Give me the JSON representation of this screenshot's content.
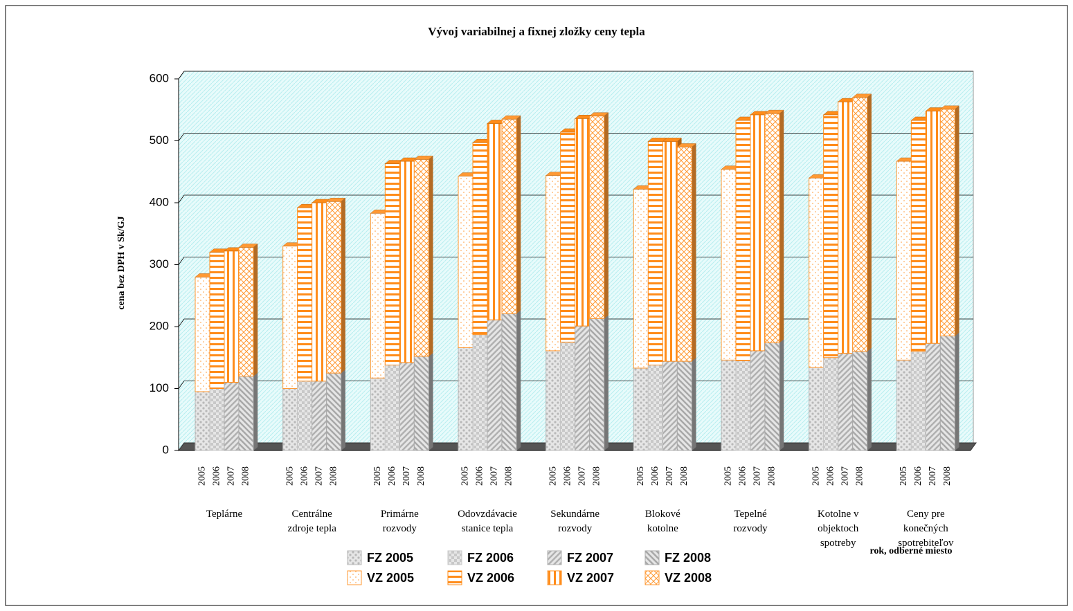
{
  "chart_data": {
    "type": "stacked-bar-3d",
    "title": "Vývoj variabilnej a fixnej zložky ceny tepla",
    "y_label": "cena bez DPH v Sk/GJ",
    "x_label": "rok, odberné miesto",
    "categories": [
      "Teplárne",
      "Centrálne\nzdroje tepla",
      "Primárne\nrozvody",
      "Odovzdávacie\nstanice tepla",
      "Sekundárne\nrozvody",
      "Blokové\nkotolne",
      "Tepelné\nrozvody",
      "Kotolne v\nobjektoch\nspotreby",
      "Ceny pre\nkonečných\nspotrebiteľov"
    ],
    "years": [
      "2005",
      "2006",
      "2007",
      "2008"
    ],
    "ylim": [
      0,
      600
    ],
    "yticks": [
      0,
      100,
      200,
      300,
      400,
      500,
      600
    ],
    "grid": true,
    "series": [
      {
        "name": "FZ 2005",
        "color": "#b8b8b8",
        "values": [
          95,
          100,
          117,
          166,
          161,
          133,
          146,
          134,
          146
        ]
      },
      {
        "name": "FZ 2006",
        "color": "#c8c8c8",
        "values": [
          100,
          112,
          138,
          187,
          175,
          138,
          145,
          150,
          160
        ]
      },
      {
        "name": "FZ 2007",
        "color": "#b0b0b0",
        "values": [
          110,
          112,
          142,
          211,
          201,
          144,
          161,
          157,
          173
        ]
      },
      {
        "name": "FZ 2008",
        "color": "#a8a8a8",
        "values": [
          120,
          125,
          152,
          221,
          213,
          144,
          174,
          160,
          185
        ]
      },
      {
        "name": "VZ 2005",
        "color": "#ff9933",
        "values": [
          185,
          230,
          266,
          277,
          283,
          289,
          308,
          306,
          321
        ]
      },
      {
        "name": "VZ 2006",
        "color": "#ff8c1a",
        "values": [
          220,
          280,
          325,
          310,
          339,
          361,
          388,
          392,
          373
        ]
      },
      {
        "name": "VZ 2007",
        "color": "#ff8c1a",
        "values": [
          212,
          288,
          325,
          317,
          335,
          355,
          381,
          406,
          375
        ]
      },
      {
        "name": "VZ 2008",
        "color": "#ff9933",
        "values": [
          208,
          277,
          318,
          314,
          327,
          346,
          370,
          410,
          366
        ]
      }
    ]
  }
}
